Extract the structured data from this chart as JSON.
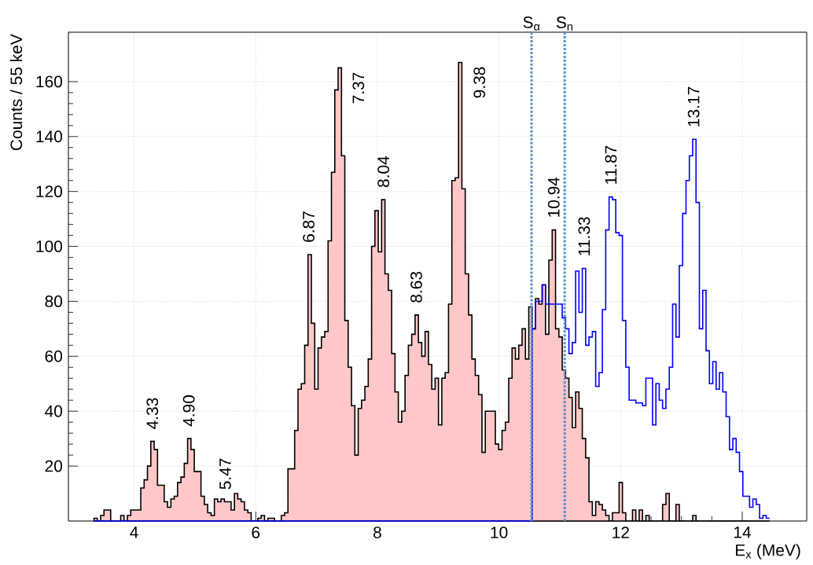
{
  "chart_data": {
    "type": "histogram",
    "xlabel": "E$_{x}$ (MeV)",
    "ylabel": "Counts / 55 keV",
    "xlim": [
      2.92,
      15.06
    ],
    "ylim": [
      0,
      178
    ],
    "xticks": [
      4,
      6,
      8,
      10,
      12,
      14
    ],
    "yticks": [
      20,
      40,
      60,
      80,
      100,
      120,
      140,
      160
    ],
    "grid": true,
    "bins": [
      3.34,
      3.395,
      3.45,
      3.505,
      3.56,
      3.615,
      3.67,
      3.725,
      3.78,
      3.835,
      3.89,
      3.945,
      4.0,
      4.055,
      4.11,
      4.165,
      4.22,
      4.275,
      4.33,
      4.385,
      4.44,
      4.495,
      4.55,
      4.605,
      4.66,
      4.715,
      4.77,
      4.825,
      4.88,
      4.935,
      4.99,
      5.045,
      5.1,
      5.155,
      5.21,
      5.265,
      5.32,
      5.375,
      5.43,
      5.485,
      5.54,
      5.595,
      5.65,
      5.705,
      5.76,
      5.815,
      5.87,
      5.925,
      5.98,
      6.035,
      6.09,
      6.145,
      6.2,
      6.255,
      6.31,
      6.365,
      6.42,
      6.475,
      6.53,
      6.585,
      6.64,
      6.695,
      6.75,
      6.805,
      6.86,
      6.915,
      6.97,
      7.025,
      7.08,
      7.135,
      7.19,
      7.245,
      7.3,
      7.355,
      7.41,
      7.465,
      7.52,
      7.575,
      7.63,
      7.685,
      7.74,
      7.795,
      7.85,
      7.905,
      7.96,
      8.015,
      8.07,
      8.125,
      8.18,
      8.235,
      8.29,
      8.345,
      8.4,
      8.455,
      8.51,
      8.565,
      8.62,
      8.675,
      8.73,
      8.785,
      8.84,
      8.895,
      8.95,
      9.005,
      9.06,
      9.115,
      9.17,
      9.225,
      9.28,
      9.335,
      9.39,
      9.445,
      9.5,
      9.555,
      9.61,
      9.665,
      9.72,
      9.775,
      9.83,
      9.885,
      9.94,
      9.995,
      10.05,
      10.105,
      10.16,
      10.215,
      10.27,
      10.325,
      10.38,
      10.435,
      10.49,
      10.545,
      10.6,
      10.655,
      10.71,
      10.765,
      10.82,
      10.875,
      10.93,
      10.985,
      11.04,
      11.095,
      11.15,
      11.205,
      11.26,
      11.315,
      11.37,
      11.425,
      11.48,
      11.535,
      11.59,
      11.645,
      11.7,
      11.755,
      11.81,
      11.865,
      11.92,
      11.975,
      12.03,
      12.085,
      12.14,
      12.195,
      12.25,
      12.305,
      12.36,
      12.415,
      12.47,
      12.525,
      12.58,
      12.635,
      12.69,
      12.745,
      12.8,
      12.855,
      12.91,
      12.965,
      13.02,
      13.075,
      13.13,
      13.185,
      13.24,
      13.295,
      13.35,
      13.405,
      13.46,
      13.515,
      13.57,
      13.625,
      13.68,
      13.735,
      13.79,
      13.845,
      13.9,
      13.955,
      14.01,
      14.065,
      14.12,
      14.175,
      14.23,
      14.285,
      14.34,
      14.395,
      14.45
    ],
    "series": [
      {
        "color": "#ffc7c7",
        "values": [
          1,
          0,
          2,
          4,
          4,
          0,
          0,
          0,
          2,
          0,
          2,
          4,
          4,
          4,
          12,
          15,
          20,
          29,
          26,
          13,
          13,
          7,
          5,
          8,
          9,
          14,
          16,
          21,
          30,
          26,
          18,
          18,
          9,
          6,
          3,
          2,
          8,
          7,
          8,
          7,
          7,
          4,
          10,
          8,
          7,
          4,
          3,
          0,
          0,
          1,
          2,
          0,
          1,
          1,
          0,
          0,
          2,
          3,
          19,
          19,
          33,
          48,
          50,
          64,
          97,
          72,
          48,
          63,
          67,
          69,
          102,
          127,
          157,
          165,
          133,
          73,
          56,
          42,
          24,
          41,
          44,
          49,
          59,
          100,
          113,
          98,
          117,
          90,
          84,
          61,
          47,
          36,
          40,
          53,
          64,
          68,
          75,
          65,
          60,
          69,
          57,
          48,
          52,
          35,
          52,
          54,
          79,
          124,
          125,
          167,
          121,
          90,
          75,
          59,
          53,
          46,
          25,
          40,
          40,
          40,
          28,
          26,
          33,
          36,
          52,
          63,
          59,
          64,
          70,
          59,
          78,
          70,
          81,
          79,
          86,
          68,
          95,
          106,
          70,
          67,
          55,
          52,
          45,
          34,
          47,
          41,
          30,
          23,
          7,
          2,
          7,
          6,
          4,
          2,
          0,
          3,
          3,
          14,
          3,
          0,
          0,
          4,
          0,
          4,
          0,
          2,
          0,
          0,
          0,
          0,
          6,
          10,
          0,
          0,
          6,
          0,
          0,
          0,
          0,
          2,
          0,
          0,
          0,
          0,
          0,
          0,
          0,
          0,
          0,
          0,
          0,
          0,
          0,
          0,
          0,
          0,
          0,
          0,
          0,
          0,
          0,
          0
        ]
      },
      {
        "color": "#0000ff",
        "values": [
          0,
          0,
          0,
          0,
          0,
          0,
          0,
          0,
          0,
          0,
          0,
          0,
          0,
          0,
          0,
          0,
          0,
          0,
          0,
          0,
          0,
          0,
          0,
          0,
          0,
          0,
          0,
          0,
          0,
          0,
          0,
          0,
          0,
          0,
          0,
          0,
          0,
          0,
          0,
          0,
          0,
          0,
          0,
          0,
          0,
          0,
          0,
          0,
          0,
          0,
          0,
          0,
          0,
          0,
          0,
          0,
          0,
          0,
          0,
          0,
          0,
          0,
          0,
          0,
          0,
          0,
          0,
          0,
          0,
          0,
          0,
          0,
          0,
          0,
          0,
          0,
          0,
          0,
          0,
          0,
          0,
          0,
          0,
          0,
          0,
          0,
          0,
          0,
          0,
          0,
          0,
          0,
          0,
          0,
          0,
          0,
          0,
          0,
          0,
          0,
          0,
          0,
          0,
          0,
          0,
          0,
          0,
          0,
          0,
          0,
          0,
          0,
          0,
          0,
          0,
          0,
          0,
          0,
          0,
          0,
          0,
          0,
          0,
          0,
          0,
          0,
          0,
          0,
          0,
          0,
          0,
          70,
          80,
          80,
          86,
          79,
          79,
          79,
          79,
          79,
          74,
          70,
          61,
          65,
          91,
          76,
          92,
          64,
          67,
          69,
          49,
          54,
          77,
          106,
          118,
          117,
          105,
          104,
          73,
          56,
          44,
          44,
          43,
          43,
          42,
          52,
          52,
          35,
          50,
          44,
          41,
          48,
          56,
          79,
          67,
          93,
          112,
          124,
          133,
          139,
          116,
          70,
          84,
          62,
          50,
          58,
          48,
          54,
          47,
          38,
          26,
          30,
          25,
          18,
          9,
          9,
          5,
          8,
          6,
          1,
          2,
          1
        ]
      }
    ],
    "ref_lines": [
      {
        "axis": "x",
        "value": 10.535,
        "label": "S$_{α}$",
        "color": "#5b8fc9",
        "line_style": "dotted"
      },
      {
        "axis": "x",
        "value": 11.08,
        "label": "S$_{n}$",
        "color": "#5b8fc9",
        "line_style": "dotted"
      }
    ],
    "annotations": [
      {
        "text": "4.33",
        "x": 4.3,
        "y": 29
      },
      {
        "text": "4.90",
        "x": 4.9,
        "y": 30
      },
      {
        "text": "5.47",
        "x": 5.5,
        "y": 7
      },
      {
        "text": "6.87",
        "x": 6.87,
        "y": 97
      },
      {
        "text": "7.37",
        "x": 7.37,
        "y": 165
      },
      {
        "text": "8.04",
        "x": 8.1,
        "y": 117
      },
      {
        "text": "8.63",
        "x": 8.64,
        "y": 75
      },
      {
        "text": "9.38",
        "x": 9.36,
        "y": 167
      },
      {
        "text": "10.94",
        "x": 10.9,
        "y": 106
      },
      {
        "text": "11.33",
        "x": 11.4,
        "y": 92
      },
      {
        "text": "11.87",
        "x": 11.84,
        "y": 118
      },
      {
        "text": "13.17",
        "x": 13.2,
        "y": 139
      }
    ]
  }
}
